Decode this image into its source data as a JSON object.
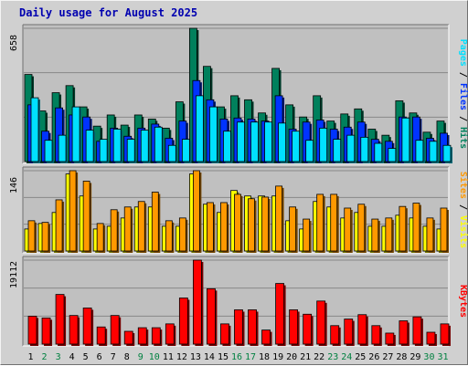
{
  "title": "Daily usage for August 2025",
  "colors": {
    "hits": "#00805c",
    "files": "#0033ff",
    "pages": "#00e0ff",
    "visits": "#ffff00",
    "sites": "#ff9900",
    "kbytes": "#ff0000",
    "panel_bg": "#c0c0c0",
    "frame_bg": "#d0d0d0",
    "gridline": "#888888",
    "weekend_day_label": "#008040",
    "weekday_day_label": "#000000"
  },
  "chart_data": [
    {
      "type": "bar",
      "panel": "traffic",
      "y_max_label": "658",
      "ylim": [
        0,
        658
      ],
      "grid": true,
      "legend": [
        "Pages",
        "Files",
        "Hits"
      ],
      "legend_placement": "right",
      "categories": [
        "1",
        "2",
        "3",
        "4",
        "5",
        "6",
        "7",
        "8",
        "9",
        "10",
        "11",
        "12",
        "13",
        "14",
        "15",
        "16",
        "17",
        "18",
        "19",
        "20",
        "21",
        "22",
        "23",
        "24",
        "25",
        "26",
        "27",
        "28",
        "29",
        "30",
        "31"
      ],
      "series": [
        {
          "name": "Hits",
          "values": [
            430,
            250,
            340,
            375,
            270,
            175,
            230,
            180,
            230,
            210,
            165,
            295,
            658,
            470,
            270,
            325,
            305,
            240,
            460,
            280,
            220,
            325,
            200,
            235,
            260,
            160,
            130,
            300,
            240,
            145,
            200
          ]
        },
        {
          "name": "Files",
          "values": [
            280,
            150,
            265,
            230,
            220,
            100,
            165,
            125,
            165,
            185,
            115,
            200,
            400,
            305,
            210,
            215,
            210,
            200,
            325,
            160,
            195,
            205,
            160,
            170,
            195,
            110,
            100,
            220,
            220,
            115,
            140
          ]
        },
        {
          "name": "Pages",
          "values": [
            315,
            105,
            130,
            270,
            155,
            110,
            160,
            110,
            155,
            170,
            80,
            110,
            325,
            270,
            150,
            195,
            195,
            195,
            190,
            150,
            105,
            165,
            110,
            130,
            120,
            90,
            65,
            215,
            105,
            100,
            80
          ]
        }
      ]
    },
    {
      "type": "bar",
      "panel": "visitors",
      "y_max_label": "146",
      "ylim": [
        0,
        146
      ],
      "grid": true,
      "legend": [
        "Sites",
        "Visits"
      ],
      "legend_placement": "right",
      "categories": [
        "1",
        "2",
        "3",
        "4",
        "5",
        "6",
        "7",
        "8",
        "9",
        "10",
        "11",
        "12",
        "13",
        "14",
        "15",
        "16",
        "17",
        "18",
        "19",
        "20",
        "21",
        "22",
        "23",
        "24",
        "25",
        "26",
        "27",
        "28",
        "29",
        "30",
        "31"
      ],
      "series": [
        {
          "name": "Visits",
          "values": [
            40,
            50,
            70,
            140,
            100,
            40,
            45,
            60,
            80,
            80,
            45,
            45,
            140,
            85,
            70,
            110,
            100,
            100,
            100,
            55,
            40,
            90,
            80,
            60,
            70,
            45,
            45,
            65,
            60,
            45,
            40
          ]
        },
        {
          "name": "Sites",
          "values": [
            55,
            52,
            93,
            146,
            127,
            50,
            75,
            80,
            90,
            107,
            55,
            60,
            146,
            88,
            88,
            103,
            95,
            98,
            118,
            80,
            58,
            103,
            103,
            78,
            85,
            58,
            60,
            81,
            87,
            60,
            78
          ]
        }
      ]
    },
    {
      "type": "bar",
      "panel": "kbytes",
      "y_max_label": "19112",
      "ylim": [
        0,
        19112
      ],
      "grid": true,
      "legend": [
        "KBytes"
      ],
      "legend_placement": "right",
      "categories": [
        "1",
        "2",
        "3",
        "4",
        "5",
        "6",
        "7",
        "8",
        "9",
        "10",
        "11",
        "12",
        "13",
        "14",
        "15",
        "16",
        "17",
        "18",
        "19",
        "20",
        "21",
        "22",
        "23",
        "24",
        "25",
        "26",
        "27",
        "28",
        "29",
        "30",
        "31"
      ],
      "series": [
        {
          "name": "KBytes",
          "values": [
            6360,
            5950,
            11300,
            6510,
            8220,
            3900,
            6510,
            2910,
            3730,
            3730,
            4600,
            10500,
            19112,
            12600,
            4600,
            7800,
            7800,
            3200,
            13800,
            7800,
            6800,
            9800,
            4200,
            5700,
            6700,
            4200,
            2500,
            5300,
            6200,
            2700,
            4600
          ]
        }
      ]
    }
  ],
  "day_labels": [
    "1",
    "2",
    "3",
    "4",
    "5",
    "6",
    "7",
    "8",
    "9",
    "10",
    "11",
    "12",
    "13",
    "14",
    "15",
    "16",
    "17",
    "18",
    "19",
    "20",
    "21",
    "22",
    "23",
    "24",
    "25",
    "26",
    "27",
    "28",
    "29",
    "30",
    "31"
  ],
  "weekend_days": [
    2,
    3,
    9,
    10,
    16,
    17,
    23,
    24,
    30,
    31
  ]
}
